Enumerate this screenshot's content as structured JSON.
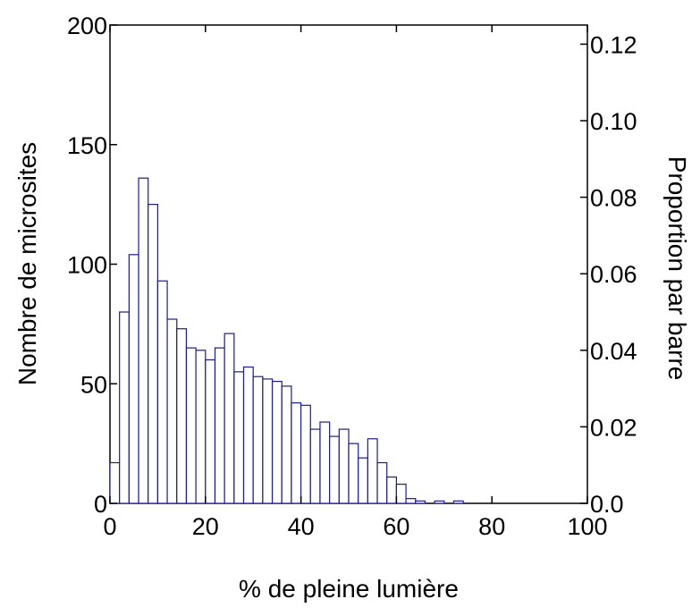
{
  "chart_data": {
    "type": "histogram",
    "x_label": "% de pleine lumière",
    "y_label": "Nombre de microsites",
    "y2_label": "Proportion par barre",
    "bins": [
      0,
      2,
      4,
      6,
      8,
      10,
      12,
      14,
      16,
      18,
      20,
      22,
      24,
      26,
      28,
      30,
      32,
      34,
      36,
      38,
      40,
      42,
      44,
      46,
      48,
      50,
      52,
      54,
      56,
      58,
      60,
      62,
      64,
      66,
      68,
      70,
      72,
      74,
      76,
      78,
      80,
      82,
      84,
      86,
      88,
      90,
      92,
      94,
      96,
      98,
      100
    ],
    "values": [
      17,
      80,
      104,
      136,
      125,
      93,
      77,
      73,
      65,
      64,
      60,
      65,
      71,
      55,
      57,
      53,
      52,
      51,
      49,
      42,
      41,
      31,
      34,
      28,
      31,
      25,
      19,
      27,
      17,
      11,
      8,
      2,
      1,
      0,
      1,
      0,
      1,
      0,
      0,
      0,
      0,
      0,
      0,
      0,
      0,
      0,
      0,
      0,
      0,
      0
    ],
    "color": "#1c1c8c",
    "xlim": [
      0,
      100
    ],
    "xticks": [
      0,
      20,
      40,
      60,
      80,
      100
    ],
    "ylim": [
      0,
      200
    ],
    "yticks": [
      0,
      50,
      100,
      150,
      200
    ],
    "y2lim": [
      0,
      0.125
    ],
    "y2ticks": [
      {
        "value": 0,
        "label": "0.0"
      },
      0.02,
      0.04,
      0.06,
      0.08,
      {
        "value": 0.1,
        "label": "0.10"
      },
      0.12
    ]
  }
}
